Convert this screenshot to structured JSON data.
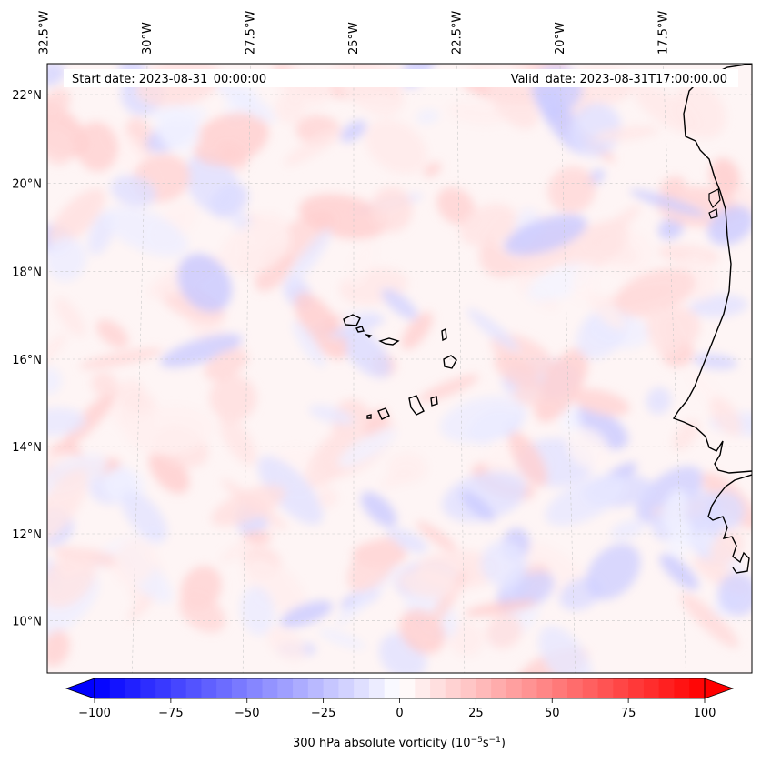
{
  "header": {
    "start_date": "Start date: 2023-08-31_00:00:00",
    "valid_date": "Valid_date: 2023-08-31T17:00:00.00"
  },
  "map": {
    "projection": "conic",
    "extent_lon": [
      -33.0,
      -15.0
    ],
    "extent_lat": [
      9.0,
      22.8
    ],
    "background_color": "#ffffff",
    "coastline_color": "#000000",
    "gridline_color": "#c8c8c8",
    "lon_ticks": [
      {
        "value": -32.5,
        "label": "32.5°W"
      },
      {
        "value": -30.0,
        "label": "30°W"
      },
      {
        "value": -27.5,
        "label": "27.5°W"
      },
      {
        "value": -25.0,
        "label": "25°W"
      },
      {
        "value": -22.5,
        "label": "22.5°W"
      },
      {
        "value": -20.0,
        "label": "20°W"
      },
      {
        "value": -17.5,
        "label": "17.5°W"
      }
    ],
    "lat_ticks": [
      {
        "value": 22,
        "label": "22°N"
      },
      {
        "value": 20,
        "label": "20°N"
      },
      {
        "value": 18,
        "label": "18°N"
      },
      {
        "value": 16,
        "label": "16°N"
      },
      {
        "value": 14,
        "label": "14°N"
      },
      {
        "value": 12,
        "label": "12°N"
      },
      {
        "value": 10,
        "label": "10°N"
      }
    ]
  },
  "colorbar": {
    "label_prefix": "300 hPa absolute vorticity (10",
    "label_exp1": "−5",
    "label_mid": "s",
    "label_exp2": "−1",
    "label_suffix": ")",
    "min": -100,
    "max": 100,
    "colormap": "bwr",
    "color_min": "#0000ff",
    "color_mid": "#ffffff",
    "color_max": "#ff0000",
    "levels": 40,
    "ticks": [
      {
        "value": -100,
        "label": "−100"
      },
      {
        "value": -75,
        "label": "−75"
      },
      {
        "value": -50,
        "label": "−50"
      },
      {
        "value": -25,
        "label": "−25"
      },
      {
        "value": 0,
        "label": "0"
      },
      {
        "value": 25,
        "label": "25"
      },
      {
        "value": 50,
        "label": "50"
      },
      {
        "value": 75,
        "label": "75"
      },
      {
        "value": 100,
        "label": "100"
      }
    ]
  }
}
